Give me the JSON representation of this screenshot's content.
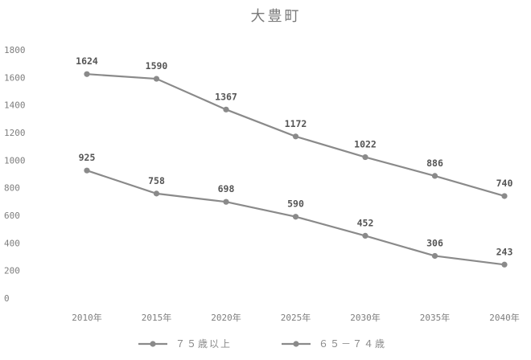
{
  "chart_data": {
    "type": "line",
    "title": "大豊町",
    "categories": [
      "2010年",
      "2015年",
      "2020年",
      "2025年",
      "2030年",
      "2035年",
      "2040年"
    ],
    "y_ticks": [
      "1800",
      "1600",
      "1400",
      "1200",
      "1000",
      "800",
      "600",
      "400",
      "200",
      "0"
    ],
    "ylim": [
      0,
      1800
    ],
    "grid": false,
    "legend_position": "bottom",
    "series": [
      {
        "name": "７５歳以上",
        "values": [
          1624,
          1590,
          1367,
          1172,
          1022,
          886,
          740
        ],
        "color": "#8a8a8a"
      },
      {
        "name": "６５－７４歳",
        "values": [
          925,
          758,
          698,
          590,
          452,
          306,
          243
        ],
        "color": "#8a8a8a"
      }
    ]
  }
}
